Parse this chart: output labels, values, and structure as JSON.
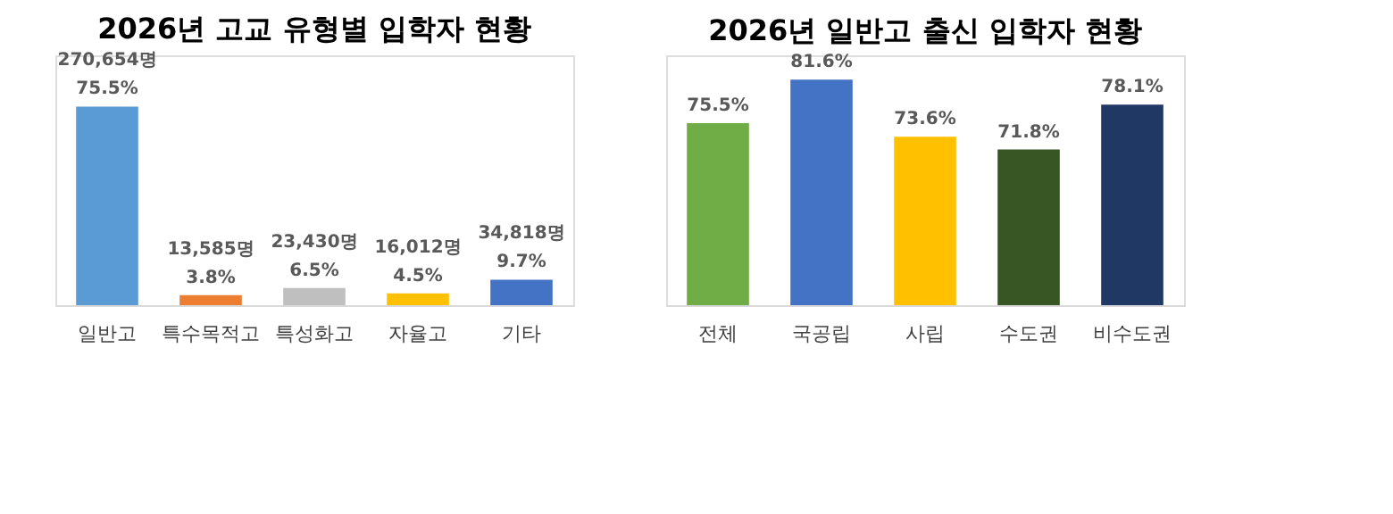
{
  "chart_data": [
    {
      "type": "bar",
      "title": "2026년 고교 유형별 입학자 현황",
      "categories": [
        "일반고",
        "특수목적고",
        "특성화고",
        "자율고",
        "기타"
      ],
      "values": [
        75.5,
        3.8,
        6.5,
        4.5,
        9.7
      ],
      "colors": [
        "#5b9bd5",
        "#ed7d31",
        "#bfbfbf",
        "#ffc000",
        "#4472c4"
      ],
      "value_labels": [
        "75.5%",
        "3.8%",
        "6.5%",
        "4.5%",
        "9.7%"
      ],
      "annotations": [
        "270,654명",
        "13,585명",
        "23,430명",
        "16,012명",
        "34,818명"
      ],
      "ylim": [
        0,
        95
      ],
      "tick_labels": "x"
    },
    {
      "type": "bar",
      "title": "2026년 일반고 출신 입학자 현황",
      "categories": [
        "전체",
        "국공립",
        "사립",
        "수도권",
        "비수도권"
      ],
      "values": [
        75.5,
        81.6,
        73.6,
        71.8,
        78.1
      ],
      "colors": [
        "#70ad47",
        "#4472c4",
        "#ffc000",
        "#375623",
        "#203864"
      ],
      "value_labels": [
        "75.5%",
        "81.6%",
        "73.6%",
        "71.8%",
        "78.1%"
      ],
      "ylim": [
        50,
        85
      ],
      "tick_labels": "x"
    }
  ]
}
